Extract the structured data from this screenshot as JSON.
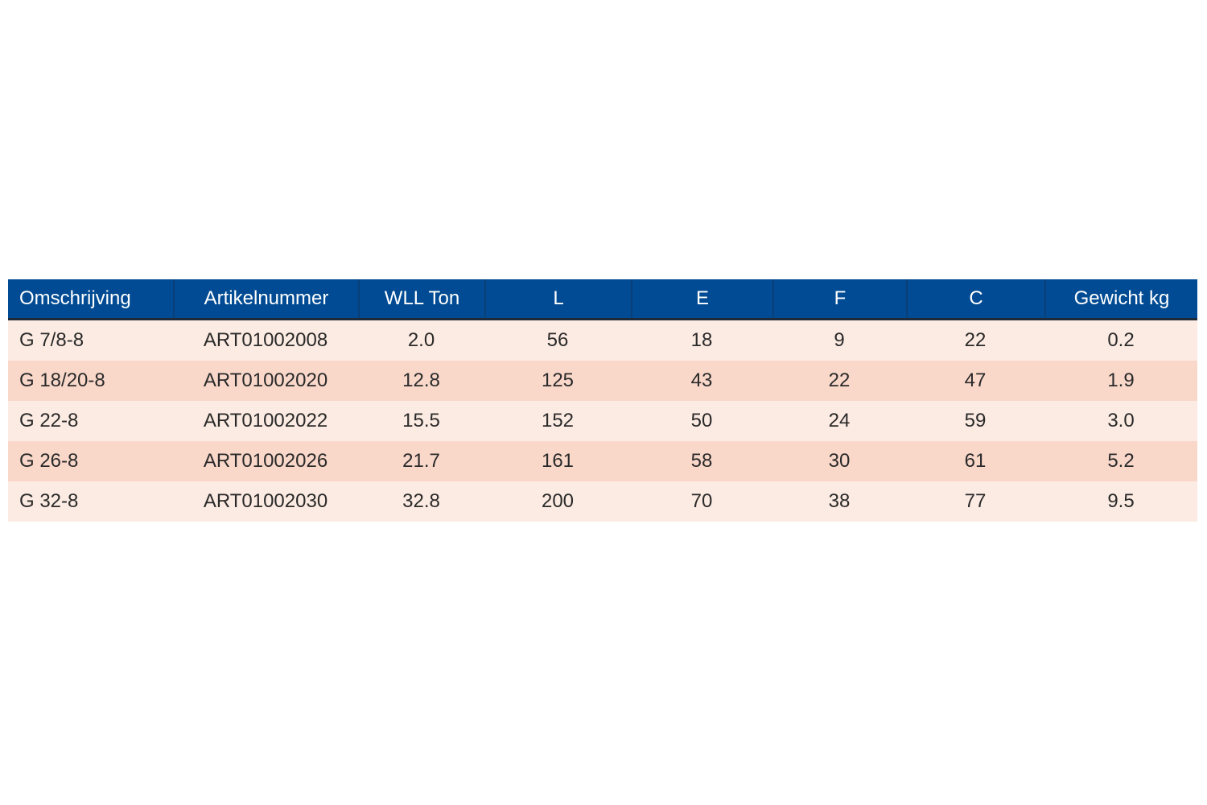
{
  "table": {
    "columns": [
      "Omschrijving",
      "Artikelnummer",
      "WLL Ton",
      "L",
      "E",
      "F",
      "C",
      "Gewicht kg"
    ],
    "rows": [
      [
        "G 7/8-8",
        "ART01002008",
        "2.0",
        "56",
        "18",
        "9",
        "22",
        "0.2"
      ],
      [
        "G 18/20-8",
        "ART01002020",
        "12.8",
        "125",
        "43",
        "22",
        "47",
        "1.9"
      ],
      [
        "G 22-8",
        "ART01002022",
        "15.5",
        "152",
        "50",
        "24",
        "59",
        "3.0"
      ],
      [
        "G 26-8",
        "ART01002026",
        "21.7",
        "161",
        "58",
        "30",
        "61",
        "5.2"
      ],
      [
        "G 32-8",
        "ART01002030",
        "32.8",
        "200",
        "70",
        "38",
        "77",
        "9.5"
      ]
    ],
    "colors": {
      "header_bg": "#004b93",
      "header_text": "#ffffff",
      "row_light": "#fcebe2",
      "row_dark": "#f9d8ca",
      "body_text": "#2a2a2a"
    }
  }
}
